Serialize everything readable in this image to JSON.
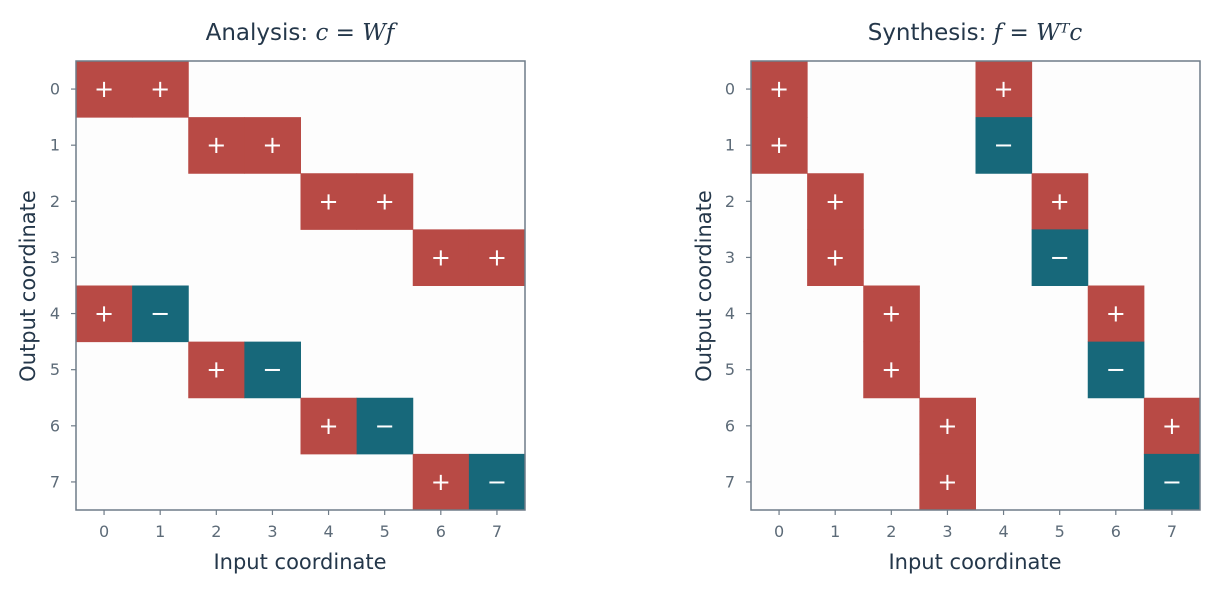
{
  "colors": {
    "positive": "#b84a45",
    "negative": "#17687a",
    "background": "#fdfdfd",
    "text": "#24374a",
    "tick_text": "#5d6b78",
    "frame": "#6f7c88"
  },
  "chart_data": [
    {
      "type": "heatmap",
      "title": "Analysis: ",
      "title_math": "c = Wf",
      "xlabel": "Input coordinate",
      "ylabel": "Output coordinate",
      "x_ticks": [
        "0",
        "1",
        "2",
        "3",
        "4",
        "5",
        "6",
        "7"
      ],
      "y_ticks": [
        "0",
        "1",
        "2",
        "3",
        "4",
        "5",
        "6",
        "7"
      ],
      "matrix": [
        [
          1,
          1,
          0,
          0,
          0,
          0,
          0,
          0
        ],
        [
          0,
          0,
          1,
          1,
          0,
          0,
          0,
          0
        ],
        [
          0,
          0,
          0,
          0,
          1,
          1,
          0,
          0
        ],
        [
          0,
          0,
          0,
          0,
          0,
          0,
          1,
          1
        ],
        [
          1,
          -1,
          0,
          0,
          0,
          0,
          0,
          0
        ],
        [
          0,
          0,
          1,
          -1,
          0,
          0,
          0,
          0
        ],
        [
          0,
          0,
          0,
          0,
          1,
          -1,
          0,
          0
        ],
        [
          0,
          0,
          0,
          0,
          0,
          0,
          1,
          -1
        ]
      ],
      "sign_labels": {
        "positive": "+",
        "negative": "−"
      }
    },
    {
      "type": "heatmap",
      "title": "Synthesis: ",
      "title_math": "f = Wᵀc",
      "xlabel": "Input coordinate",
      "ylabel": "Output coordinate",
      "x_ticks": [
        "0",
        "1",
        "2",
        "3",
        "4",
        "5",
        "6",
        "7"
      ],
      "y_ticks": [
        "0",
        "1",
        "2",
        "3",
        "4",
        "5",
        "6",
        "7"
      ],
      "matrix": [
        [
          1,
          0,
          0,
          0,
          1,
          0,
          0,
          0
        ],
        [
          1,
          0,
          0,
          0,
          -1,
          0,
          0,
          0
        ],
        [
          0,
          1,
          0,
          0,
          0,
          1,
          0,
          0
        ],
        [
          0,
          1,
          0,
          0,
          0,
          -1,
          0,
          0
        ],
        [
          0,
          0,
          1,
          0,
          0,
          0,
          1,
          0
        ],
        [
          0,
          0,
          1,
          0,
          0,
          0,
          -1,
          0
        ],
        [
          0,
          0,
          0,
          1,
          0,
          0,
          0,
          1
        ],
        [
          0,
          0,
          0,
          1,
          0,
          0,
          0,
          -1
        ]
      ],
      "sign_labels": {
        "positive": "+",
        "negative": "−"
      }
    }
  ]
}
